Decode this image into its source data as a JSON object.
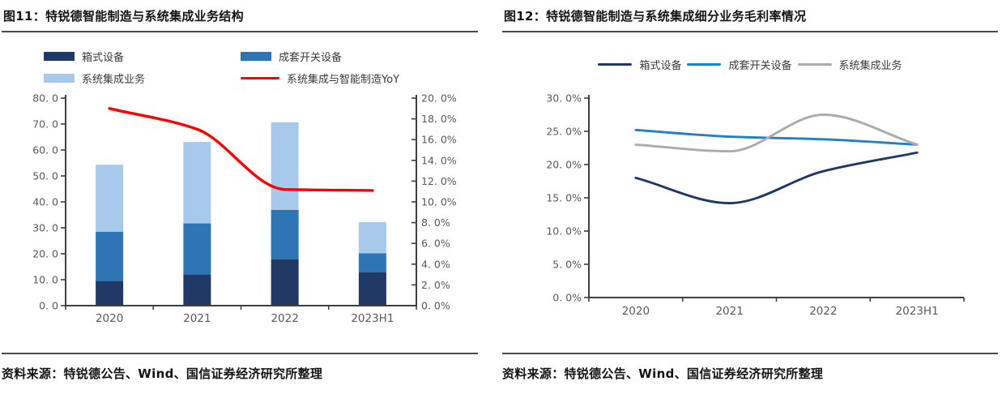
{
  "source_note": "资料来源：特锐德公告、Wind、国信证券经济研究所整理",
  "colors": {
    "bar_dark_blue": "#1F3864",
    "bar_mid_blue": "#2E75B6",
    "bar_light_blue": "#A6C9EC",
    "yoy_red": "#FE0000",
    "line_navy": "#1F3864",
    "line_blue": "#2080C8",
    "line_gray": "#ABABAB",
    "axis": "#3f3f3f",
    "tick_text": "#595959"
  },
  "chart_data": [
    {
      "id": "fig11",
      "type": "bar",
      "title": "图11：特锐德智能制造与系统集成业务结构",
      "categories": [
        "2020",
        "2021",
        "2022",
        "2023H1"
      ],
      "series": [
        {
          "name": "箱式设备",
          "type": "bar",
          "color": "#1F3864",
          "values": [
            9.5,
            12.0,
            17.8,
            12.8
          ]
        },
        {
          "name": "成套开关设备",
          "type": "bar",
          "color": "#2E75B6",
          "values": [
            19.0,
            19.7,
            19.1,
            7.4
          ]
        },
        {
          "name": "系统集成业务",
          "type": "bar",
          "color": "#A6C9EC",
          "values": [
            25.8,
            31.4,
            33.8,
            12.0
          ]
        },
        {
          "name": "系统集成与智能制造YoY",
          "type": "line",
          "axis": "right",
          "color": "#FE0000",
          "values": [
            19.0,
            17.0,
            11.2,
            11.1
          ]
        }
      ],
      "left_axis": {
        "min": 0,
        "max": 80,
        "step": 10,
        "tick_labels": [
          "0. 0",
          "10. 0",
          "20. 0",
          "30. 0",
          "40. 0",
          "50. 0",
          "60. 0",
          "70. 0",
          "80. 0"
        ]
      },
      "right_axis": {
        "min": 0,
        "max": 20,
        "step": 2,
        "tick_labels": [
          "0. 0%",
          "2. 0%",
          "4. 0%",
          "6. 0%",
          "8. 0%",
          "10. 0%",
          "12. 0%",
          "14. 0%",
          "16. 0%",
          "18. 0%",
          "20. 0%"
        ]
      },
      "legend_position": "top-two-columns",
      "grid": false
    },
    {
      "id": "fig12",
      "type": "line",
      "title": "图12：特锐德智能制造与系统集成细分业务毛利率情况",
      "categories": [
        "2020",
        "2021",
        "2022",
        "2023H1"
      ],
      "series": [
        {
          "name": "箱式设备",
          "color": "#1F3864",
          "values": [
            18.0,
            14.2,
            19.0,
            21.8
          ]
        },
        {
          "name": "成套开关设备",
          "color": "#2080C8",
          "values": [
            25.2,
            24.2,
            23.8,
            23.0
          ]
        },
        {
          "name": "系统集成业务",
          "color": "#ABABAB",
          "values": [
            23.0,
            22.0,
            27.5,
            23.0
          ]
        }
      ],
      "y_axis": {
        "min": 0,
        "max": 30,
        "step": 5,
        "tick_labels": [
          "0. 0%",
          "5. 0%",
          "10. 0%",
          "15. 0%",
          "20. 0%",
          "25. 0%",
          "30. 0%"
        ]
      },
      "ylabel": "",
      "xlabel": "",
      "legend_position": "top-center-row",
      "grid": false
    }
  ]
}
